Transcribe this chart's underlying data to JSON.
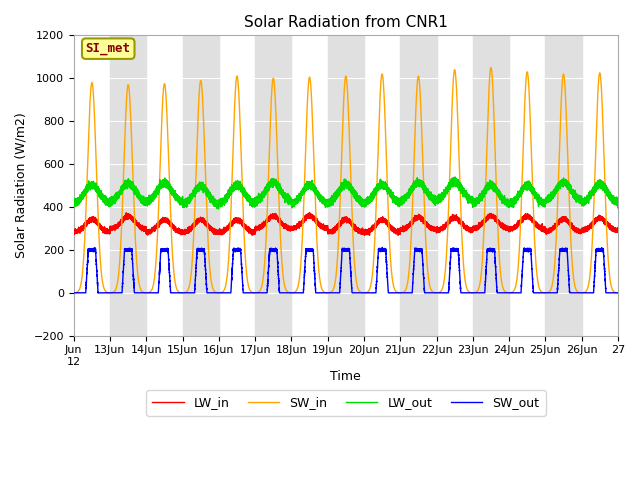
{
  "title": "Solar Radiation from CNR1",
  "xlabel": "Time",
  "ylabel": "Solar Radiation (W/m2)",
  "ylim": [
    -200,
    1200
  ],
  "yticks": [
    -200,
    0,
    200,
    400,
    600,
    800,
    1000,
    1200
  ],
  "colors": {
    "LW_in": "#ff0000",
    "SW_in": "#ffa500",
    "LW_out": "#00dd00",
    "SW_out": "#0000ff"
  },
  "label_box_facecolor": "#ffff99",
  "label_box_edgecolor": "#999900",
  "label_text": "SI_met",
  "label_text_color": "#880000",
  "n_days": 15,
  "start_day": 12,
  "SW_in_peaks": [
    980,
    970,
    975,
    990,
    1010,
    1000,
    1005,
    1010,
    1020,
    1010,
    1040,
    1050,
    1030,
    1020,
    1025
  ],
  "pts_per_day": 1440,
  "plot_bg": "#ffffff",
  "band_color": "#e0e0e0",
  "line_width": 1.0,
  "legend_fontsize": 9,
  "axis_fontsize": 9,
  "tick_fontsize": 8,
  "title_fontsize": 11
}
